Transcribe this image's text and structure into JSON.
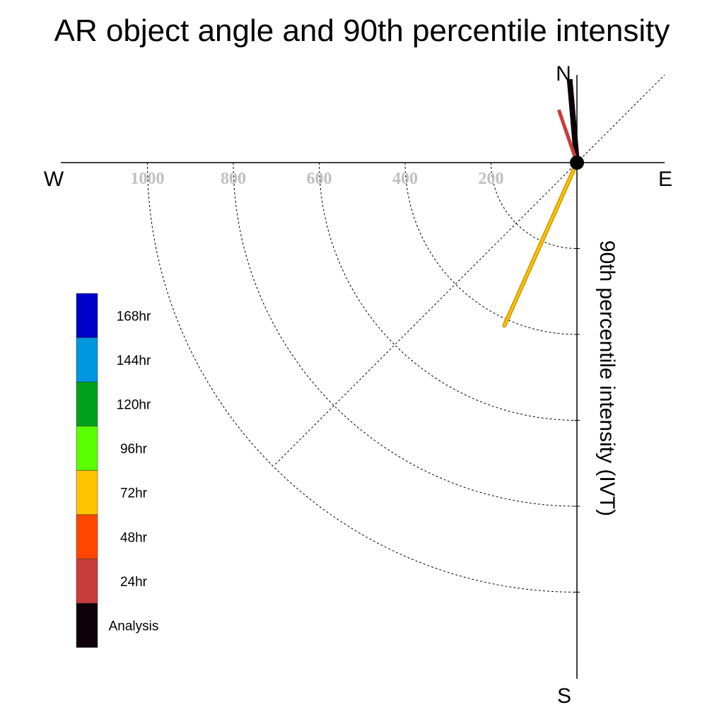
{
  "chart_data": {
    "type": "polar-vector",
    "title": "AR object angle and 90th percentile intensity",
    "ylabel": "90th percentile intensity (IVT)",
    "directions": {
      "north": "N",
      "south": "S",
      "west": "W",
      "east": "E"
    },
    "radial_ticks": [
      200,
      400,
      600,
      800,
      1000
    ],
    "radial_ticks_text": [
      "200",
      "400",
      "600",
      "800",
      "1000"
    ],
    "rlim": [
      0,
      1000
    ],
    "grid": true,
    "legend_position": "left",
    "legend": [
      {
        "label": "168hr",
        "color": "#0000c8"
      },
      {
        "label": "144hr",
        "color": "#0096e0"
      },
      {
        "label": "120hr",
        "color": "#00a01a"
      },
      {
        "label": "96hr",
        "color": "#5aff00"
      },
      {
        "label": "72hr",
        "color": "#ffc300"
      },
      {
        "label": "48hr",
        "color": "#ff4600"
      },
      {
        "label": "24hr",
        "color": "#c83c3c"
      },
      {
        "label": "Analysis",
        "color": "#0d0008"
      }
    ],
    "series": [
      {
        "name": "Analysis",
        "angle_deg": 355,
        "intensity": 195,
        "color": "#0d0008"
      },
      {
        "name": "24hr",
        "angle_deg": 341,
        "intensity": 130,
        "color": "#c83c3c"
      },
      {
        "name": "72hr",
        "angle_deg": 204,
        "intensity": 415,
        "color": "#ffc300"
      }
    ]
  }
}
